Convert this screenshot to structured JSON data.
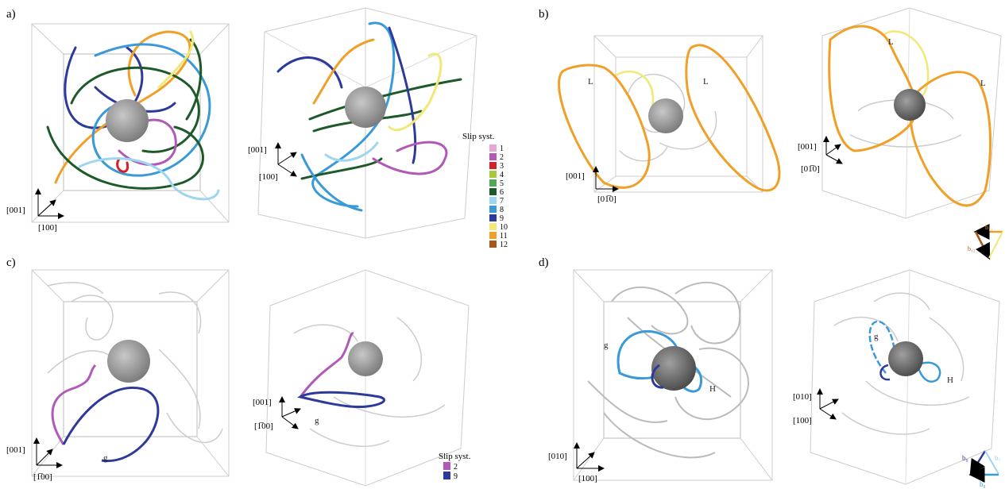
{
  "panels": [
    {
      "label": "a)",
      "axes_left": [
        "[001]",
        "[100]"
      ],
      "axes_right": [
        "[001]",
        "[100]"
      ],
      "annotations": []
    },
    {
      "label": "b)",
      "axes_left": [
        "[001]",
        "[01̅0]"
      ],
      "axes_right": [
        "[001]",
        "[01̅0]"
      ],
      "annotations": [
        "L",
        "L",
        "L",
        "L"
      ]
    },
    {
      "label": "c)",
      "axes_left": [
        "[001]",
        "[1̅00]"
      ],
      "axes_right": [
        "[001]",
        "[1̅00]"
      ],
      "annotations": [
        "g",
        "g"
      ]
    },
    {
      "label": "d)",
      "axes_left": [
        "[010]",
        "[100]"
      ],
      "axes_right": [
        "[010]",
        "[100]"
      ],
      "annotations": [
        "g",
        "H",
        "g",
        "H"
      ]
    }
  ],
  "slip_legend_a": {
    "title": "Slip syst.",
    "items": [
      {
        "label": "1",
        "color": "#e8a6d8"
      },
      {
        "label": "2",
        "color": "#b05ab8"
      },
      {
        "label": "3",
        "color": "#d4202a"
      },
      {
        "label": "4",
        "color": "#a8c83a"
      },
      {
        "label": "5",
        "color": "#4fa852"
      },
      {
        "label": "6",
        "color": "#1d5a2a"
      },
      {
        "label": "7",
        "color": "#9ed6f0"
      },
      {
        "label": "8",
        "color": "#3a9ad8"
      },
      {
        "label": "9",
        "color": "#2d3a9a"
      },
      {
        "label": "10",
        "color": "#f2e878"
      },
      {
        "label": "11",
        "color": "#f0a028"
      },
      {
        "label": "12",
        "color": "#a8561a"
      }
    ]
  },
  "slip_legend_c": {
    "title": "Slip syst.",
    "items": [
      {
        "label": "2",
        "color": "#b05ab8"
      },
      {
        "label": "9",
        "color": "#2d3a9a"
      }
    ]
  },
  "burgers_b": {
    "labels": [
      "b₁₁",
      "b₁₂",
      "b₁₀"
    ]
  },
  "burgers_d": {
    "labels": [
      "b₉",
      "b₇",
      "b₈"
    ]
  }
}
